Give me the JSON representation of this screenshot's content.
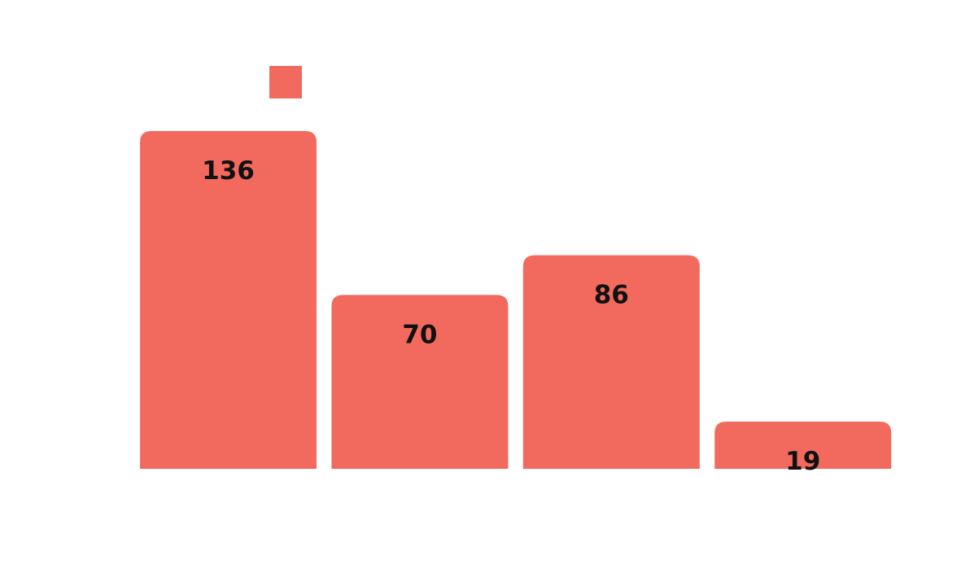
{
  "chart_data": {
    "type": "bar",
    "categories": [
      "",
      "",
      "",
      ""
    ],
    "values": [
      136,
      70,
      86,
      19
    ],
    "series": [
      {
        "name": "",
        "values": [
          136,
          70,
          86,
          19
        ],
        "color": "#F26A5E"
      }
    ],
    "title": "",
    "xlabel": "",
    "ylabel": "",
    "ylim": [
      0,
      136
    ],
    "grid": false,
    "legend": {
      "placement": "top-left",
      "entries": [
        ""
      ]
    },
    "data_labels": [
      "136",
      "70",
      "86",
      "19"
    ]
  }
}
